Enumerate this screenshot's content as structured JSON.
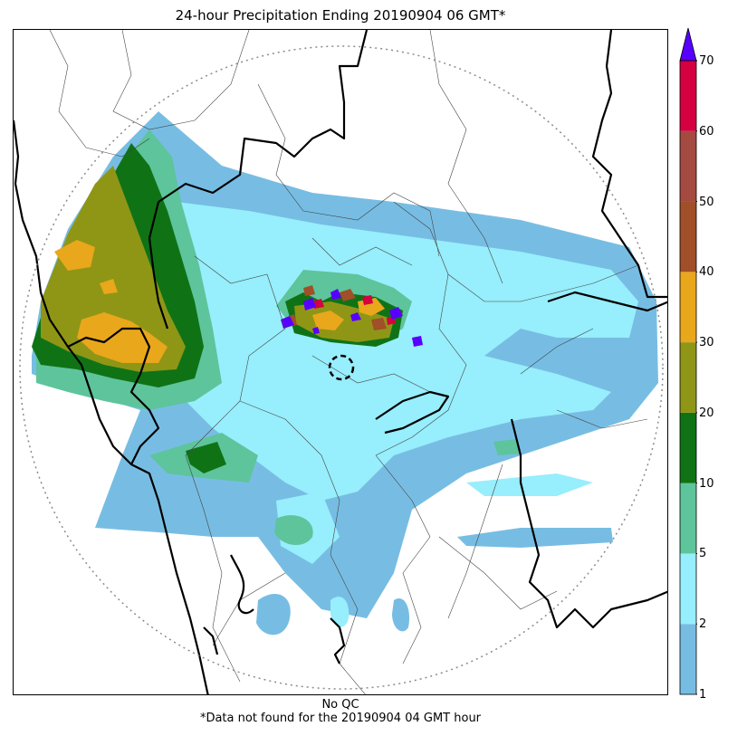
{
  "title": "24-hour Precipitation Ending 20190904 06 GMT*",
  "footnote": {
    "line1": "No QC",
    "line2": "*Data not found for the 20190904 04 GMT hour"
  },
  "colorbar": {
    "levels": [
      "1",
      "2",
      "5",
      "10",
      "20",
      "30",
      "40",
      "50",
      "60",
      "70"
    ],
    "colors": [
      "#77bde3",
      "#97eefc",
      "#5ec49b",
      "#0f7316",
      "#8f9616",
      "#e9a71b",
      "#a04f28",
      "#a54a41",
      "#d4003f"
    ],
    "extend_color": "#5800ff"
  },
  "map_colors": {
    "boundary_major": "#000000",
    "boundary_minor": "#444444",
    "range_ring": "#8c8c8c"
  }
}
